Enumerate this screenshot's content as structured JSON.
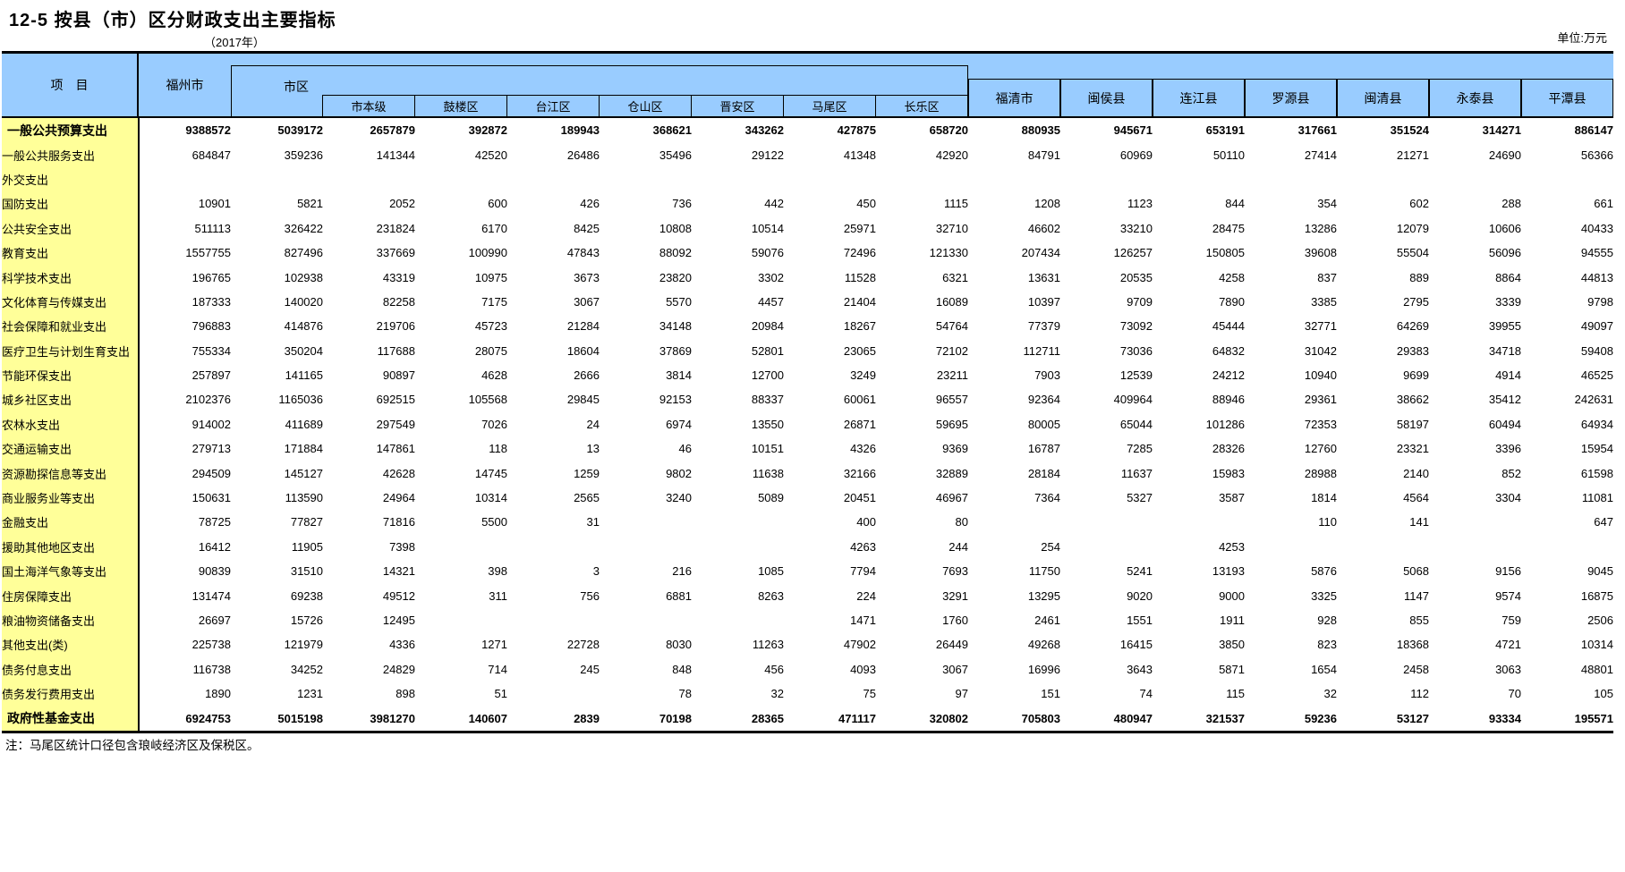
{
  "title": "12-5 按县（市）区分财政支出主要指标",
  "subtitle": "（2017年）",
  "unit_note": "单位:万元",
  "footnote": "注：马尾区统计口径包含琅岐经济区及保税区。",
  "colors": {
    "header_bg": "#99CCFF",
    "row_label_bg": "#FFFF99",
    "border": "#000000"
  },
  "header": {
    "item_label": "项　目",
    "city_col": "福州市",
    "urban_group": "市区",
    "urban_sub_cols": [
      "市本级",
      "鼓楼区",
      "台江区",
      "仓山区",
      "晋安区",
      "马尾区",
      "长乐区"
    ],
    "county_cols": [
      "福清市",
      "闽侯县",
      "连江县",
      "罗源县",
      "闽清县",
      "永泰县",
      "平潭县"
    ]
  },
  "table": {
    "columns": [
      "福州市",
      "市区",
      "市本级",
      "鼓楼区",
      "台江区",
      "仓山区",
      "晋安区",
      "马尾区",
      "长乐区",
      "福清市",
      "闽侯县",
      "连江县",
      "罗源县",
      "闽清县",
      "永泰县",
      "平潭县"
    ],
    "rows": [
      {
        "label": "一般公共预算支出",
        "bold": true,
        "values": [
          "9388572",
          "5039172",
          "2657879",
          "392872",
          "189943",
          "368621",
          "343262",
          "427875",
          "658720",
          "880935",
          "945671",
          "653191",
          "317661",
          "351524",
          "314271",
          "886147"
        ]
      },
      {
        "label": "一般公共服务支出",
        "bold": false,
        "values": [
          "684847",
          "359236",
          "141344",
          "42520",
          "26486",
          "35496",
          "29122",
          "41348",
          "42920",
          "84791",
          "60969",
          "50110",
          "27414",
          "21271",
          "24690",
          "56366"
        ]
      },
      {
        "label": "外交支出",
        "bold": false,
        "values": [
          "",
          "",
          "",
          "",
          "",
          "",
          "",
          "",
          "",
          "",
          "",
          "",
          "",
          "",
          "",
          ""
        ]
      },
      {
        "label": "国防支出",
        "bold": false,
        "values": [
          "10901",
          "5821",
          "2052",
          "600",
          "426",
          "736",
          "442",
          "450",
          "1115",
          "1208",
          "1123",
          "844",
          "354",
          "602",
          "288",
          "661"
        ]
      },
      {
        "label": "公共安全支出",
        "bold": false,
        "values": [
          "511113",
          "326422",
          "231824",
          "6170",
          "8425",
          "10808",
          "10514",
          "25971",
          "32710",
          "46602",
          "33210",
          "28475",
          "13286",
          "12079",
          "10606",
          "40433"
        ]
      },
      {
        "label": "教育支出",
        "bold": false,
        "values": [
          "1557755",
          "827496",
          "337669",
          "100990",
          "47843",
          "88092",
          "59076",
          "72496",
          "121330",
          "207434",
          "126257",
          "150805",
          "39608",
          "55504",
          "56096",
          "94555"
        ]
      },
      {
        "label": "科学技术支出",
        "bold": false,
        "values": [
          "196765",
          "102938",
          "43319",
          "10975",
          "3673",
          "23820",
          "3302",
          "11528",
          "6321",
          "13631",
          "20535",
          "4258",
          "837",
          "889",
          "8864",
          "44813"
        ]
      },
      {
        "label": "文化体育与传媒支出",
        "bold": false,
        "values": [
          "187333",
          "140020",
          "82258",
          "7175",
          "3067",
          "5570",
          "4457",
          "21404",
          "16089",
          "10397",
          "9709",
          "7890",
          "3385",
          "2795",
          "3339",
          "9798"
        ]
      },
      {
        "label": "社会保障和就业支出",
        "bold": false,
        "values": [
          "796883",
          "414876",
          "219706",
          "45723",
          "21284",
          "34148",
          "20984",
          "18267",
          "54764",
          "77379",
          "73092",
          "45444",
          "32771",
          "64269",
          "39955",
          "49097"
        ]
      },
      {
        "label": "医疗卫生与计划生育支出",
        "bold": false,
        "values": [
          "755334",
          "350204",
          "117688",
          "28075",
          "18604",
          "37869",
          "52801",
          "23065",
          "72102",
          "112711",
          "73036",
          "64832",
          "31042",
          "29383",
          "34718",
          "59408"
        ]
      },
      {
        "label": "节能环保支出",
        "bold": false,
        "values": [
          "257897",
          "141165",
          "90897",
          "4628",
          "2666",
          "3814",
          "12700",
          "3249",
          "23211",
          "7903",
          "12539",
          "24212",
          "10940",
          "9699",
          "4914",
          "46525"
        ]
      },
      {
        "label": "城乡社区支出",
        "bold": false,
        "values": [
          "2102376",
          "1165036",
          "692515",
          "105568",
          "29845",
          "92153",
          "88337",
          "60061",
          "96557",
          "92364",
          "409964",
          "88946",
          "29361",
          "38662",
          "35412",
          "242631"
        ]
      },
      {
        "label": "农林水支出",
        "bold": false,
        "values": [
          "914002",
          "411689",
          "297549",
          "7026",
          "24",
          "6974",
          "13550",
          "26871",
          "59695",
          "80005",
          "65044",
          "101286",
          "72353",
          "58197",
          "60494",
          "64934"
        ]
      },
      {
        "label": "交通运输支出",
        "bold": false,
        "values": [
          "279713",
          "171884",
          "147861",
          "118",
          "13",
          "46",
          "10151",
          "4326",
          "9369",
          "16787",
          "7285",
          "28326",
          "12760",
          "23321",
          "3396",
          "15954"
        ]
      },
      {
        "label": "资源勘探信息等支出",
        "bold": false,
        "values": [
          "294509",
          "145127",
          "42628",
          "14745",
          "1259",
          "9802",
          "11638",
          "32166",
          "32889",
          "28184",
          "11637",
          "15983",
          "28988",
          "2140",
          "852",
          "61598"
        ]
      },
      {
        "label": "商业服务业等支出",
        "bold": false,
        "values": [
          "150631",
          "113590",
          "24964",
          "10314",
          "2565",
          "3240",
          "5089",
          "20451",
          "46967",
          "7364",
          "5327",
          "3587",
          "1814",
          "4564",
          "3304",
          "11081"
        ]
      },
      {
        "label": "金融支出",
        "bold": false,
        "values": [
          "78725",
          "77827",
          "71816",
          "5500",
          "31",
          "",
          "",
          "400",
          "80",
          "",
          "",
          "",
          "110",
          "141",
          "",
          "647"
        ]
      },
      {
        "label": "援助其他地区支出",
        "bold": false,
        "values": [
          "16412",
          "11905",
          "7398",
          "",
          "",
          "",
          "",
          "4263",
          "244",
          "254",
          "",
          "4253",
          "",
          "",
          "",
          ""
        ]
      },
      {
        "label": "国土海洋气象等支出",
        "bold": false,
        "values": [
          "90839",
          "31510",
          "14321",
          "398",
          "3",
          "216",
          "1085",
          "7794",
          "7693",
          "11750",
          "5241",
          "13193",
          "5876",
          "5068",
          "9156",
          "9045"
        ]
      },
      {
        "label": "住房保障支出",
        "bold": false,
        "values": [
          "131474",
          "69238",
          "49512",
          "311",
          "756",
          "6881",
          "8263",
          "224",
          "3291",
          "13295",
          "9020",
          "9000",
          "3325",
          "1147",
          "9574",
          "16875"
        ]
      },
      {
        "label": "粮油物资储备支出",
        "bold": false,
        "values": [
          "26697",
          "15726",
          "12495",
          "",
          "",
          "",
          "",
          "1471",
          "1760",
          "2461",
          "1551",
          "1911",
          "928",
          "855",
          "759",
          "2506"
        ]
      },
      {
        "label": "其他支出(类)",
        "bold": false,
        "values": [
          "225738",
          "121979",
          "4336",
          "1271",
          "22728",
          "8030",
          "11263",
          "47902",
          "26449",
          "49268",
          "16415",
          "3850",
          "823",
          "18368",
          "4721",
          "10314"
        ]
      },
      {
        "label": "债务付息支出",
        "bold": false,
        "values": [
          "116738",
          "34252",
          "24829",
          "714",
          "245",
          "848",
          "456",
          "4093",
          "3067",
          "16996",
          "3643",
          "5871",
          "1654",
          "2458",
          "3063",
          "48801"
        ]
      },
      {
        "label": "债务发行费用支出",
        "bold": false,
        "values": [
          "1890",
          "1231",
          "898",
          "51",
          "",
          "78",
          "32",
          "75",
          "97",
          "151",
          "74",
          "115",
          "32",
          "112",
          "70",
          "105"
        ]
      },
      {
        "label": "政府性基金支出",
        "bold": true,
        "values": [
          "6924753",
          "5015198",
          "3981270",
          "140607",
          "2839",
          "70198",
          "28365",
          "471117",
          "320802",
          "705803",
          "480947",
          "321537",
          "59236",
          "53127",
          "93334",
          "195571"
        ]
      }
    ]
  }
}
